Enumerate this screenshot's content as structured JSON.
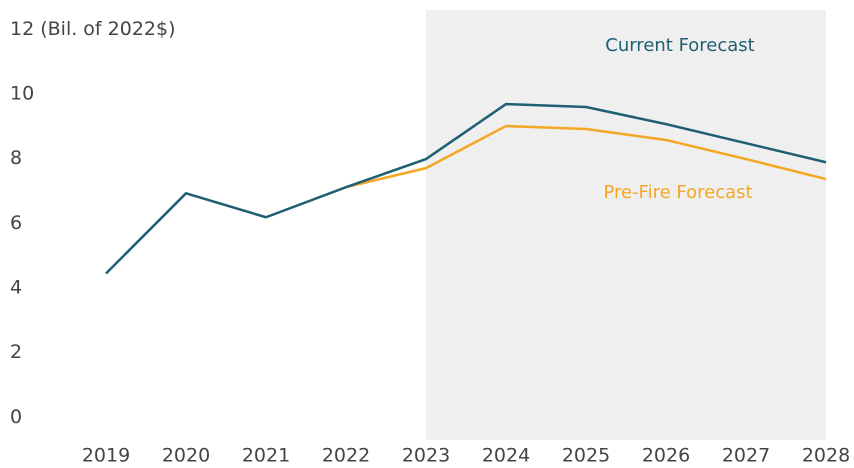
{
  "chart_data": {
    "type": "line",
    "categories": [
      "2019",
      "2020",
      "2021",
      "2022",
      "2023",
      "2024",
      "2025",
      "2026",
      "2027",
      "2028"
    ],
    "series": [
      {
        "name": "Current Forecast",
        "color": "#1f5f73",
        "values": [
          4.45,
          6.93,
          6.19,
          7.12,
          7.99,
          9.69,
          9.6,
          9.07,
          8.48,
          7.89
        ]
      },
      {
        "name": "Pre-Fire Forecast",
        "color": "#f5a623",
        "values": [
          null,
          null,
          null,
          7.12,
          7.71,
          9.01,
          8.92,
          8.58,
          7.99,
          7.37
        ]
      }
    ],
    "shaded_range": [
      "2023",
      "2028"
    ],
    "ylim": [
      -0.7,
      12.6
    ],
    "yticks": [
      0,
      2,
      4,
      6,
      8,
      10,
      {
        "value": 12,
        "label": "12 (Bil. of 2022$)"
      }
    ],
    "grid": false
  }
}
